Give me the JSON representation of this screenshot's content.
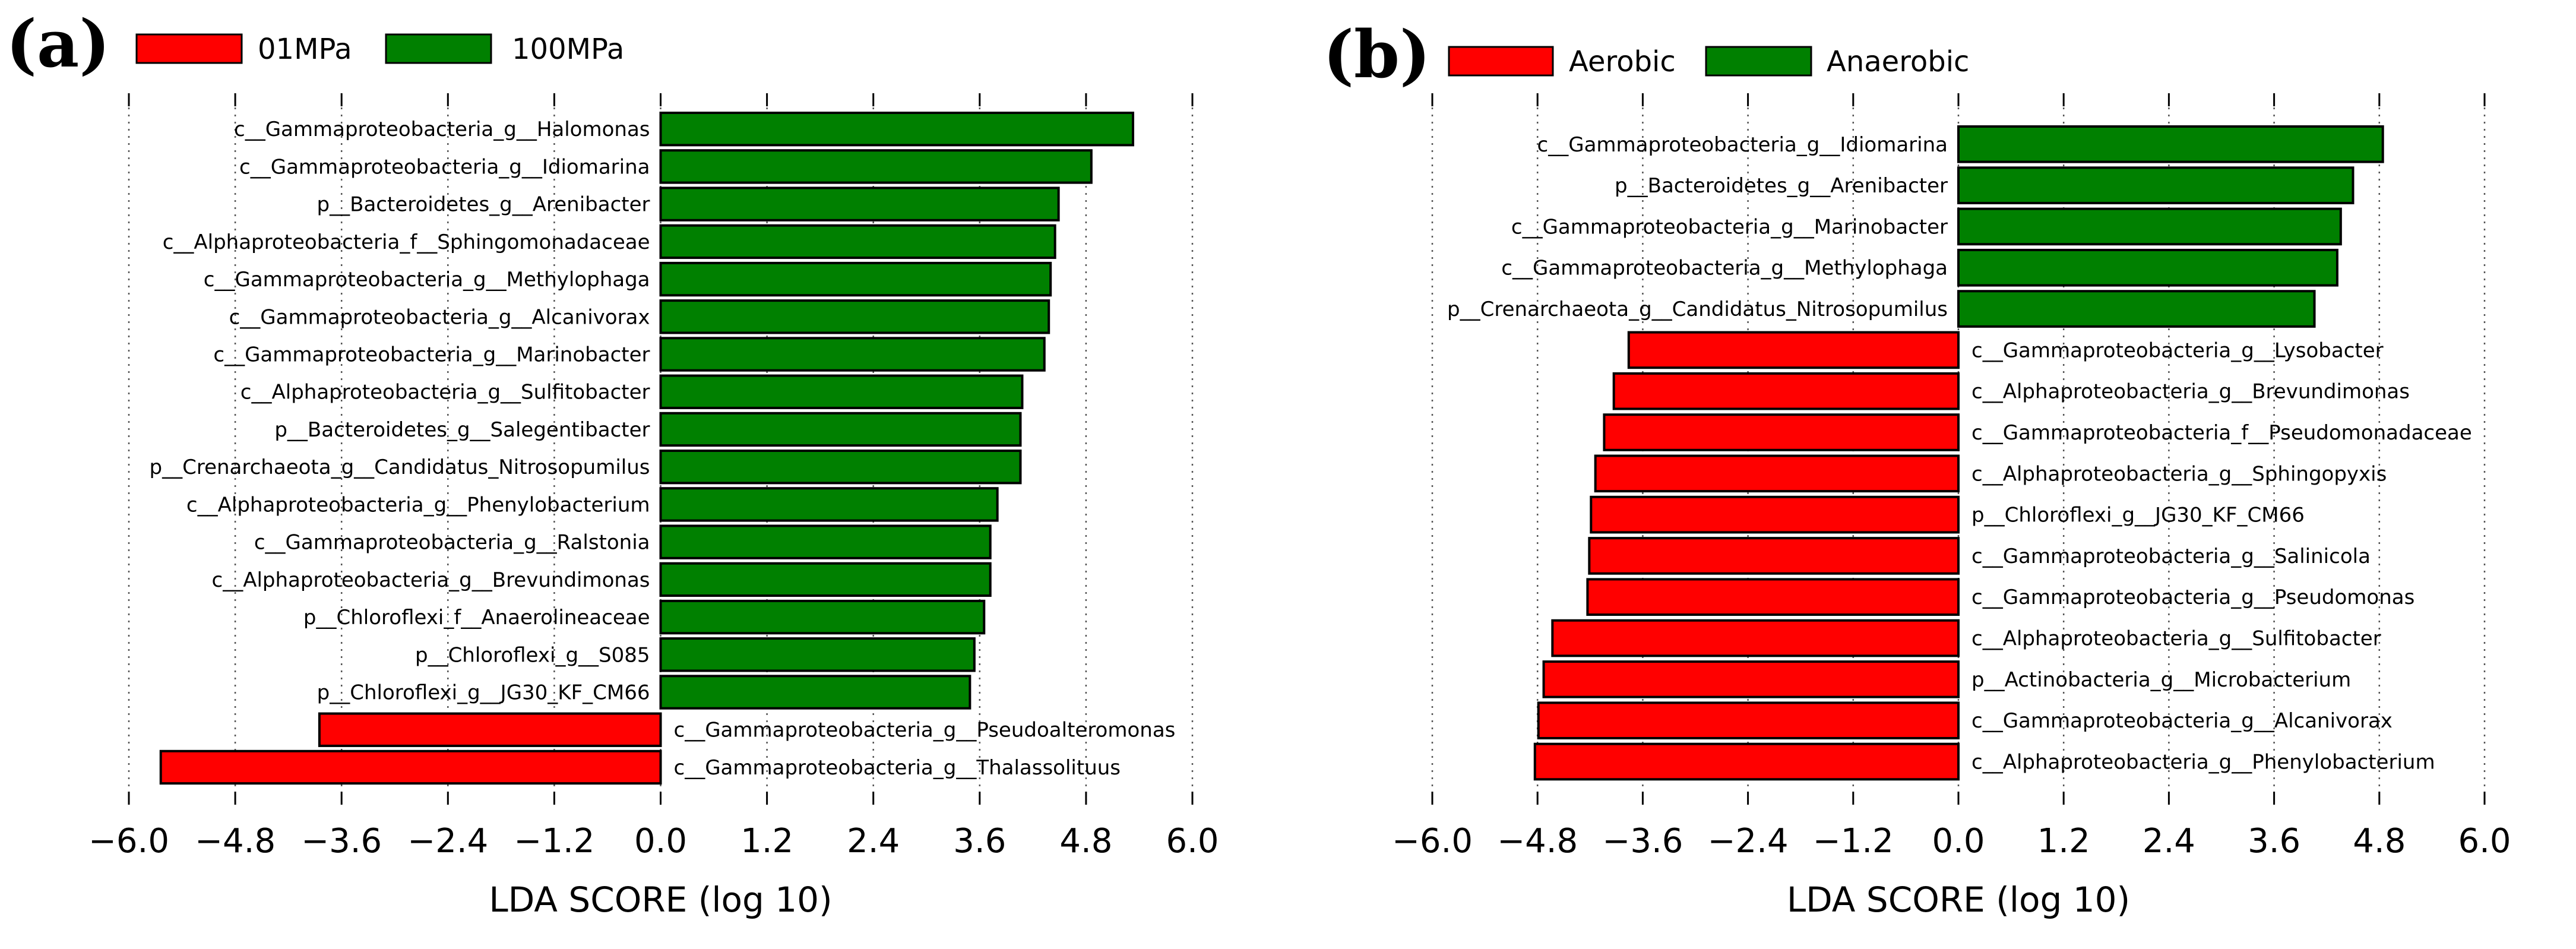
{
  "colors": {
    "negative": "#ff0000",
    "positive": "#008000"
  },
  "chart_data": [
    {
      "type": "bar",
      "orientation": "horizontal",
      "panel_label": "(a)",
      "legend": [
        {
          "name": "01MPa",
          "color": "#ff0000"
        },
        {
          "name": "100MPa",
          "color": "#008000"
        }
      ],
      "legend_placement": "top-left",
      "xlabel": "LDA SCORE (log 10)",
      "xlim": [
        -6.0,
        6.0
      ],
      "xticks": [
        "-6.0",
        "-4.8",
        "-3.6",
        "-2.4",
        "-1.2",
        "0.0",
        "1.2",
        "2.4",
        "3.6",
        "4.8",
        "6.0"
      ],
      "grid": "vertical dotted",
      "categories": [
        "c__Gammaproteobacteria_g__Halomonas",
        "c__Gammaproteobacteria_g__Idiomarina",
        "p__Bacteroidetes_g__Arenibacter",
        "c__Alphaproteobacteria_f__Sphingomonadaceae",
        "c__Gammaproteobacteria_g__Methylophaga",
        "c__Gammaproteobacteria_g__Alcanivorax",
        "c__Gammaproteobacteria_g__Marinobacter",
        "c__Alphaproteobacteria_g__Sulfitobacter",
        "p__Bacteroidetes_g__Salegentibacter",
        "p__Crenarchaeota_g__Candidatus_Nitrosopumilus",
        "c__Alphaproteobacteria_g__Phenylobacterium",
        "c__Gammaproteobacteria_g__Ralstonia",
        "c__Alphaproteobacteria_g__Brevundimonas",
        "p__Chloroflexi_f__Anaerolineaceae",
        "p__Chloroflexi_g__S085",
        "p__Chloroflexi_g__JG30_KF_CM66",
        "c__Gammaproteobacteria_g__Pseudoalteromonas",
        "c__Gammaproteobacteria_g__Thalassolituus"
      ],
      "values": [
        5.33,
        4.86,
        4.49,
        4.45,
        4.4,
        4.38,
        4.33,
        4.08,
        4.06,
        4.06,
        3.8,
        3.72,
        3.72,
        3.65,
        3.54,
        3.49,
        -3.85,
        -5.64
      ]
    },
    {
      "type": "bar",
      "orientation": "horizontal",
      "panel_label": "(b)",
      "legend": [
        {
          "name": "Aerobic",
          "color": "#ff0000"
        },
        {
          "name": "Anaerobic",
          "color": "#008000"
        }
      ],
      "legend_placement": "top-left",
      "xlabel": "LDA SCORE (log 10)",
      "xlim": [
        -6.0,
        6.0
      ],
      "xticks": [
        "-6.0",
        "-4.8",
        "-3.6",
        "-2.4",
        "-1.2",
        "0.0",
        "1.2",
        "2.4",
        "3.6",
        "4.8",
        "6.0"
      ],
      "grid": "vertical dotted",
      "categories": [
        "c__Gammaproteobacteria_g__Idiomarina",
        "p__Bacteroidetes_g__Arenibacter",
        "c__Gammaproteobacteria_g__Marinobacter",
        "c__Gammaproteobacteria_g__Methylophaga",
        "p__Crenarchaeota_g__Candidatus_Nitrosopumilus",
        "c__Gammaproteobacteria_g__Lysobacter",
        "c__Alphaproteobacteria_g__Brevundimonas",
        "c__Gammaproteobacteria_f__Pseudomonadaceae",
        "c__Alphaproteobacteria_g__Sphingopyxis",
        "p__Chloroflexi_g__JG30_KF_CM66",
        "c__Gammaproteobacteria_g__Salinicola",
        "c__Gammaproteobacteria_g__Pseudomonas",
        "c__Alphaproteobacteria_g__Sulfitobacter",
        "p__Actinobacteria_g__Microbacterium",
        "c__Gammaproteobacteria_g__Alcanivorax",
        "c__Alphaproteobacteria_g__Phenylobacterium"
      ],
      "values": [
        4.84,
        4.5,
        4.36,
        4.32,
        4.06,
        -3.76,
        -3.93,
        -4.04,
        -4.14,
        -4.19,
        -4.21,
        -4.23,
        -4.63,
        -4.73,
        -4.79,
        -4.83
      ]
    }
  ]
}
